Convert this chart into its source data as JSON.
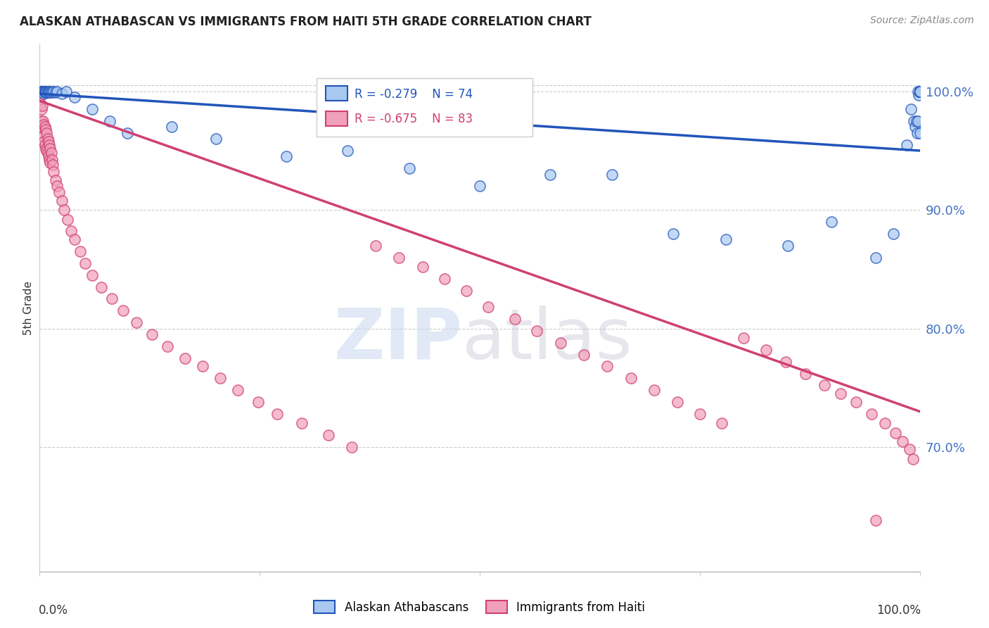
{
  "title": "ALASKAN ATHABASCAN VS IMMIGRANTS FROM HAITI 5TH GRADE CORRELATION CHART",
  "source": "Source: ZipAtlas.com",
  "ylabel": "5th Grade",
  "blue_R": -0.279,
  "blue_N": 74,
  "pink_R": -0.675,
  "pink_N": 83,
  "blue_color": "#A8C8F0",
  "pink_color": "#F0A0B8",
  "blue_line_color": "#2255BB",
  "pink_line_color": "#D04070",
  "legend_blue_label": "Alaskan Athabascans",
  "legend_pink_label": "Immigrants from Haiti",
  "ytick_labels": [
    "100.0%",
    "90.0%",
    "80.0%",
    "70.0%"
  ],
  "ytick_values": [
    1.0,
    0.9,
    0.8,
    0.7
  ],
  "xlim": [
    0.0,
    1.0
  ],
  "ylim": [
    0.595,
    1.04
  ],
  "blue_line_y_start": 0.998,
  "blue_line_y_end": 0.95,
  "pink_line_y_start": 0.992,
  "pink_line_y_end": 0.73,
  "blue_scatter_x": [
    0.002,
    0.003,
    0.003,
    0.004,
    0.004,
    0.005,
    0.005,
    0.006,
    0.006,
    0.007,
    0.008,
    0.009,
    0.01,
    0.011,
    0.012,
    0.013,
    0.014,
    0.016,
    0.018,
    0.02,
    0.025,
    0.03,
    0.04,
    0.06,
    0.08,
    0.1,
    0.15,
    0.2,
    0.28,
    0.35,
    0.42,
    0.5,
    0.58,
    0.65,
    0.72,
    0.78,
    0.85,
    0.9,
    0.95,
    0.97,
    0.985,
    0.99,
    0.993,
    0.995,
    0.996,
    0.997,
    0.998,
    0.998,
    0.999,
    1.0,
    1.0,
    1.0,
    1.0,
    1.0,
    1.0,
    1.0,
    1.0,
    1.0,
    1.0,
    1.0,
    1.0,
    1.0,
    1.0,
    1.0,
    1.0,
    1.0,
    1.0,
    1.0,
    1.0,
    1.0,
    1.0,
    1.0,
    1.0,
    1.0
  ],
  "blue_scatter_y": [
    1.0,
    1.0,
    0.998,
    1.0,
    0.999,
    1.0,
    0.998,
    1.0,
    0.999,
    1.0,
    0.999,
    1.0,
    0.999,
    1.0,
    0.999,
    1.0,
    0.999,
    1.0,
    0.999,
    1.0,
    0.998,
    1.0,
    0.995,
    0.985,
    0.975,
    0.965,
    0.97,
    0.96,
    0.945,
    0.95,
    0.935,
    0.92,
    0.93,
    0.93,
    0.88,
    0.875,
    0.87,
    0.89,
    0.86,
    0.88,
    0.955,
    0.985,
    0.975,
    0.97,
    0.975,
    0.965,
    0.975,
    1.0,
    0.997,
    1.0,
    1.0,
    1.0,
    1.0,
    1.0,
    1.0,
    1.0,
    1.0,
    1.0,
    1.0,
    1.0,
    1.0,
    1.0,
    1.0,
    1.0,
    1.0,
    1.0,
    1.0,
    1.0,
    1.0,
    1.0,
    1.0,
    1.0,
    1.0,
    0.965
  ],
  "pink_scatter_x": [
    0.001,
    0.002,
    0.002,
    0.003,
    0.003,
    0.004,
    0.004,
    0.005,
    0.005,
    0.006,
    0.006,
    0.007,
    0.007,
    0.008,
    0.008,
    0.009,
    0.009,
    0.01,
    0.01,
    0.011,
    0.011,
    0.012,
    0.012,
    0.013,
    0.014,
    0.015,
    0.016,
    0.018,
    0.02,
    0.022,
    0.025,
    0.028,
    0.032,
    0.036,
    0.04,
    0.046,
    0.052,
    0.06,
    0.07,
    0.082,
    0.095,
    0.11,
    0.128,
    0.145,
    0.165,
    0.185,
    0.205,
    0.225,
    0.248,
    0.27,
    0.298,
    0.328,
    0.355,
    0.382,
    0.408,
    0.435,
    0.46,
    0.485,
    0.51,
    0.54,
    0.565,
    0.592,
    0.618,
    0.645,
    0.672,
    0.698,
    0.725,
    0.75,
    0.775,
    0.8,
    0.825,
    0.848,
    0.87,
    0.892,
    0.91,
    0.928,
    0.945,
    0.96,
    0.972,
    0.98,
    0.988,
    0.992,
    0.95
  ],
  "pink_scatter_y": [
    0.99,
    0.985,
    0.975,
    0.988,
    0.97,
    0.975,
    0.962,
    0.972,
    0.958,
    0.97,
    0.955,
    0.968,
    0.952,
    0.965,
    0.95,
    0.96,
    0.948,
    0.958,
    0.945,
    0.955,
    0.942,
    0.952,
    0.94,
    0.948,
    0.942,
    0.938,
    0.932,
    0.925,
    0.92,
    0.915,
    0.908,
    0.9,
    0.892,
    0.882,
    0.875,
    0.865,
    0.855,
    0.845,
    0.835,
    0.825,
    0.815,
    0.805,
    0.795,
    0.785,
    0.775,
    0.768,
    0.758,
    0.748,
    0.738,
    0.728,
    0.72,
    0.71,
    0.7,
    0.87,
    0.86,
    0.852,
    0.842,
    0.832,
    0.818,
    0.808,
    0.798,
    0.788,
    0.778,
    0.768,
    0.758,
    0.748,
    0.738,
    0.728,
    0.72,
    0.792,
    0.782,
    0.772,
    0.762,
    0.752,
    0.745,
    0.738,
    0.728,
    0.72,
    0.712,
    0.705,
    0.698,
    0.69,
    0.638
  ]
}
